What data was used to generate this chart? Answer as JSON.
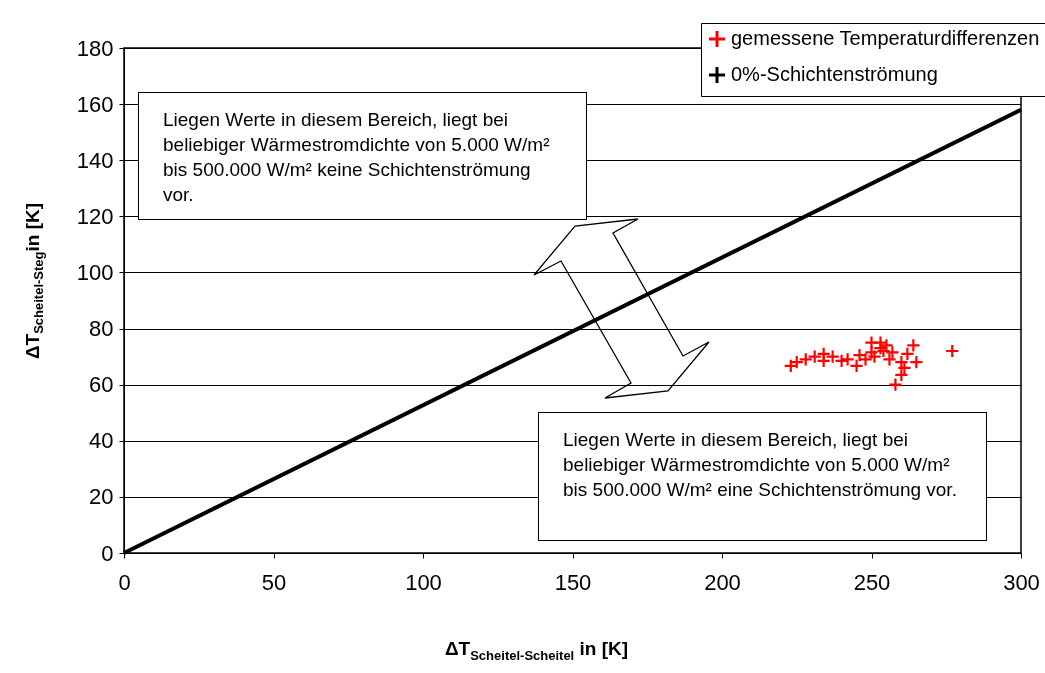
{
  "chart_data": {
    "type": "scatter",
    "xlabel": "ΔT$_{Scheitel-Scheitel}$ in [K]",
    "ylabel": "ΔT$_{Scheitel-Steg}$in [K]",
    "xlim": [
      0,
      300
    ],
    "xticks": [
      0,
      50,
      100,
      150,
      200,
      250,
      300
    ],
    "ylim": [
      0,
      180
    ],
    "yticks": [
      0,
      20,
      40,
      60,
      80,
      100,
      120,
      140,
      160,
      180
    ],
    "grid": "y",
    "legend": "top right",
    "series": [
      {
        "name": "gemessene Temperaturdifferenzen",
        "color": "#ff0000",
        "marker": "cross",
        "x": [
          223,
          225,
          228,
          231,
          234,
          234,
          237,
          240,
          242,
          245,
          246,
          248,
          250,
          250,
          251,
          253,
          253,
          254,
          255,
          256,
          257,
          258,
          260,
          260,
          261,
          262,
          264,
          265,
          277
        ],
        "values": [
          66.7,
          68,
          69,
          70,
          68.5,
          71,
          70,
          68.5,
          69,
          66.7,
          70.5,
          69,
          71.5,
          75,
          70,
          75,
          73,
          72,
          74,
          69,
          71.5,
          60,
          68,
          63.5,
          66,
          71,
          74,
          68,
          72
        ]
      },
      {
        "name": "0%-Schichtenströmung",
        "type": "line",
        "color": "#000000",
        "x": [
          0,
          300
        ],
        "values": [
          0,
          158
        ]
      }
    ],
    "annotations": [
      "Liegen Werte in diesem Bereich, liegt bei beliebiger Wärmestromdichte von 5.000 W/m² bis 500.000 W/m² keine Schichtenströmung vor.",
      "Liegen Werte in diesem Bereich, liegt bei beliebiger Wärmestromdichte von 5.000 W/m² bis 500.000 W/m² eine Schichtenströmung vor."
    ]
  }
}
